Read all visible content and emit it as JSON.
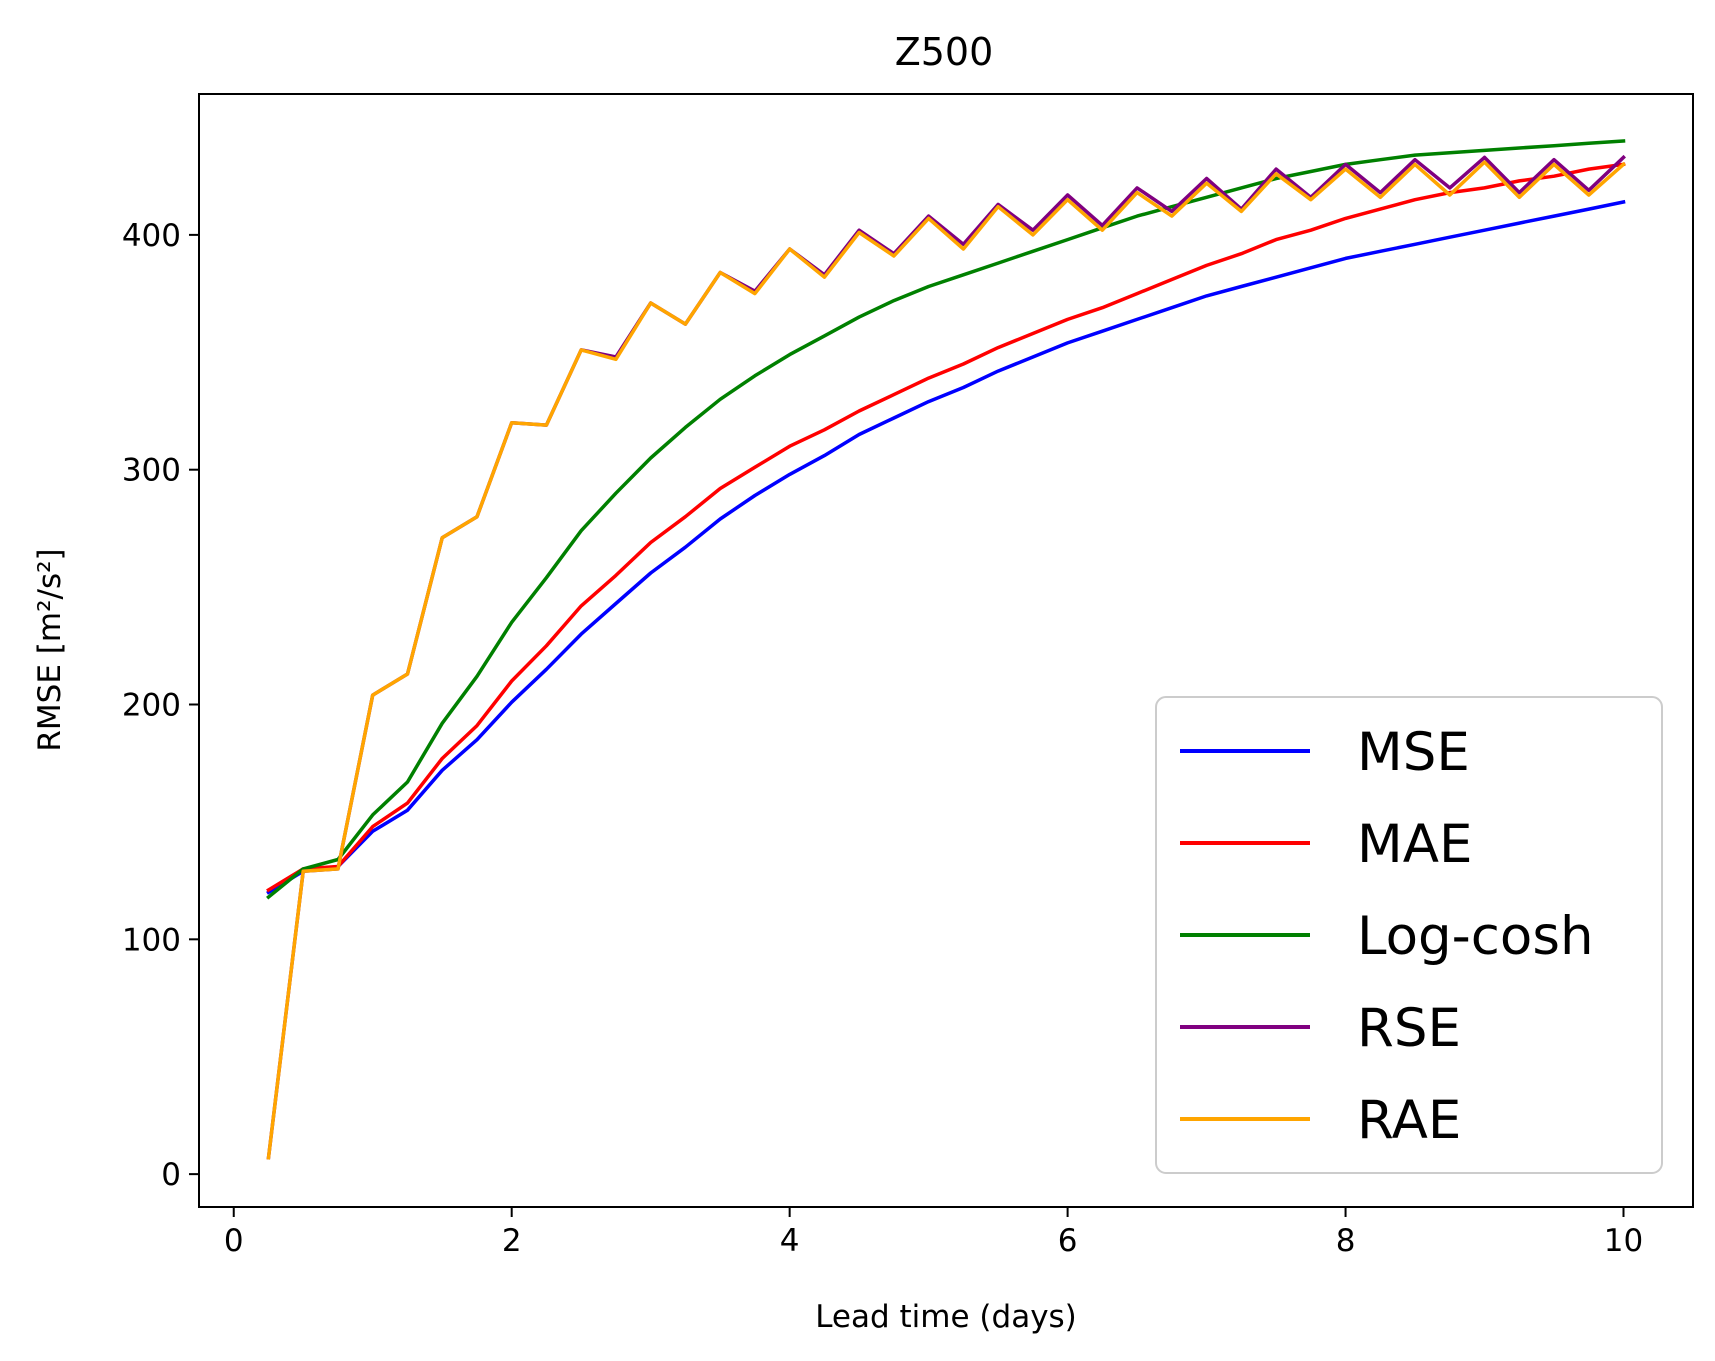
{
  "chart_data": {
    "type": "line",
    "title": "Z500",
    "xlabel": "Lead time (days)",
    "ylabel": "RMSE [m²/s²]",
    "xlim": [
      -0.25,
      10.5
    ],
    "ylim": [
      -14,
      460
    ],
    "xticks": [
      0,
      2,
      4,
      6,
      8,
      10
    ],
    "yticks": [
      0,
      100,
      200,
      300,
      400
    ],
    "grid": false,
    "legend_position": "lower-right",
    "x": [
      0.25,
      0.5,
      0.75,
      1.0,
      1.25,
      1.5,
      1.75,
      2.0,
      2.25,
      2.5,
      2.75,
      3.0,
      3.25,
      3.5,
      3.75,
      4.0,
      4.25,
      4.5,
      4.75,
      5.0,
      5.25,
      5.5,
      5.75,
      6.0,
      6.25,
      6.5,
      6.75,
      7.0,
      7.25,
      7.5,
      7.75,
      8.0,
      8.25,
      8.5,
      8.75,
      9.0,
      9.25,
      9.5,
      9.75,
      10.0
    ],
    "series": [
      {
        "name": "MSE",
        "color": "#0000ff",
        "values": [
          120,
          129,
          131,
          146,
          155,
          172,
          185,
          201,
          215,
          230,
          243,
          256,
          267,
          279,
          289,
          298,
          306,
          315,
          322,
          329,
          335,
          342,
          348,
          354,
          359,
          364,
          369,
          374,
          378,
          382,
          386,
          390,
          393,
          396,
          399,
          402,
          405,
          408,
          411,
          414
        ]
      },
      {
        "name": "MAE",
        "color": "#ff0000",
        "values": [
          121,
          130,
          131,
          148,
          158,
          177,
          191,
          210,
          225,
          242,
          255,
          269,
          280,
          292,
          301,
          310,
          317,
          325,
          332,
          339,
          345,
          352,
          358,
          364,
          369,
          375,
          381,
          387,
          392,
          398,
          402,
          407,
          411,
          415,
          418,
          420,
          423,
          425,
          428,
          430
        ]
      },
      {
        "name": "Log-cosh",
        "color": "#008000",
        "values": [
          118,
          130,
          134,
          153,
          167,
          192,
          212,
          235,
          254,
          274,
          290,
          305,
          318,
          330,
          340,
          349,
          357,
          365,
          372,
          378,
          383,
          388,
          393,
          398,
          403,
          408,
          412,
          416,
          420,
          424,
          427,
          430,
          432,
          434,
          435,
          436,
          437,
          438,
          439,
          440
        ]
      },
      {
        "name": "RSE",
        "color": "#800080",
        "values": [
          7,
          129,
          130,
          204,
          213,
          271,
          280,
          320,
          319,
          351,
          348,
          371,
          362,
          384,
          376,
          394,
          383,
          402,
          392,
          408,
          396,
          413,
          402,
          417,
          404,
          420,
          410,
          424,
          411,
          428,
          416,
          430,
          418,
          432,
          420,
          433,
          418,
          432,
          419,
          433
        ]
      },
      {
        "name": "RAE",
        "color": "#ffa500",
        "values": [
          7,
          129,
          130,
          204,
          213,
          271,
          280,
          320,
          319,
          351,
          347,
          371,
          362,
          384,
          375,
          394,
          382,
          401,
          391,
          407,
          394,
          412,
          400,
          415,
          402,
          418,
          408,
          422,
          410,
          426,
          415,
          428,
          416,
          430,
          417,
          431,
          416,
          430,
          417,
          430
        ]
      }
    ]
  }
}
